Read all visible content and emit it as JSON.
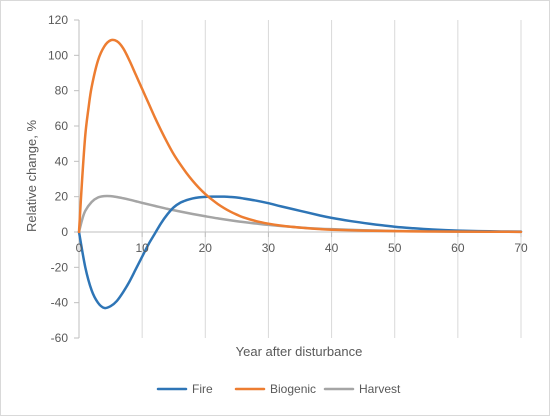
{
  "chart_data": {
    "type": "line",
    "title": "",
    "xlabel": "Year after disturbance",
    "ylabel": "Relative change, %",
    "xlim": [
      0,
      70
    ],
    "ylim": [
      -60,
      120
    ],
    "xticks": [
      0,
      10,
      20,
      30,
      40,
      50,
      60,
      70
    ],
    "yticks": [
      -60,
      -40,
      -20,
      0,
      20,
      40,
      60,
      80,
      100,
      120
    ],
    "grid": "vertical",
    "legend_position": "bottom",
    "series": [
      {
        "name": "Fire",
        "color": "#2e75b6",
        "x": [
          0,
          1,
          2,
          3,
          4,
          5,
          6,
          7,
          8,
          9,
          10,
          11,
          12,
          13,
          14,
          15,
          16,
          17,
          18,
          19,
          20,
          21,
          22,
          23,
          24,
          25,
          26,
          28,
          30,
          32,
          35,
          38,
          40,
          43,
          46,
          50,
          53,
          56,
          60,
          65,
          70
        ],
        "y": [
          0,
          -20,
          -33,
          -40,
          -43,
          -42,
          -39,
          -34,
          -28,
          -21,
          -14,
          -7,
          -1,
          5,
          10,
          14,
          16.5,
          18,
          19,
          19.6,
          19.9,
          20,
          20,
          20,
          19.8,
          19.5,
          19,
          17.8,
          16.3,
          14.5,
          12,
          9.5,
          8,
          6.2,
          4.7,
          3,
          2.1,
          1.4,
          0.8,
          0.4,
          0.2
        ]
      },
      {
        "name": "Biogenic",
        "color": "#ed7d31",
        "x": [
          0,
          0.5,
          1,
          1.5,
          2,
          3,
          4,
          5,
          6,
          7,
          8,
          9,
          10,
          11,
          12,
          13,
          14,
          15,
          16,
          17,
          18,
          19,
          20,
          21,
          22,
          23,
          24,
          25,
          26,
          28,
          30,
          32,
          35,
          38,
          40,
          45,
          50,
          55,
          60,
          70
        ],
        "y": [
          0,
          30,
          55,
          70,
          82,
          97,
          105,
          108.5,
          108,
          104,
          97,
          89,
          81,
          73,
          65,
          57.5,
          50.5,
          44,
          38.5,
          33.5,
          29,
          25,
          21.5,
          18.5,
          15.8,
          13.5,
          11.5,
          9.8,
          8.3,
          6.2,
          4.7,
          3.6,
          2.5,
          1.7,
          1.3,
          0.8,
          0.5,
          0.3,
          0.2,
          0.1
        ]
      },
      {
        "name": "Harvest",
        "color": "#a5a5a5",
        "x": [
          0,
          0.5,
          1,
          2,
          3,
          4,
          5,
          6,
          7,
          8,
          9,
          10,
          12,
          14,
          16,
          18,
          20,
          22,
          25,
          28,
          30,
          33,
          36,
          40,
          45,
          50,
          55,
          60,
          70
        ],
        "y": [
          0,
          7,
          12,
          17,
          19.5,
          20.3,
          20.3,
          19.8,
          19.1,
          18.3,
          17.4,
          16.5,
          14.8,
          13.1,
          11.6,
          10.2,
          8.9,
          7.7,
          6.1,
          4.8,
          4,
          3.1,
          2.3,
          1.6,
          1,
          0.6,
          0.4,
          0.2,
          0.1
        ]
      }
    ]
  }
}
